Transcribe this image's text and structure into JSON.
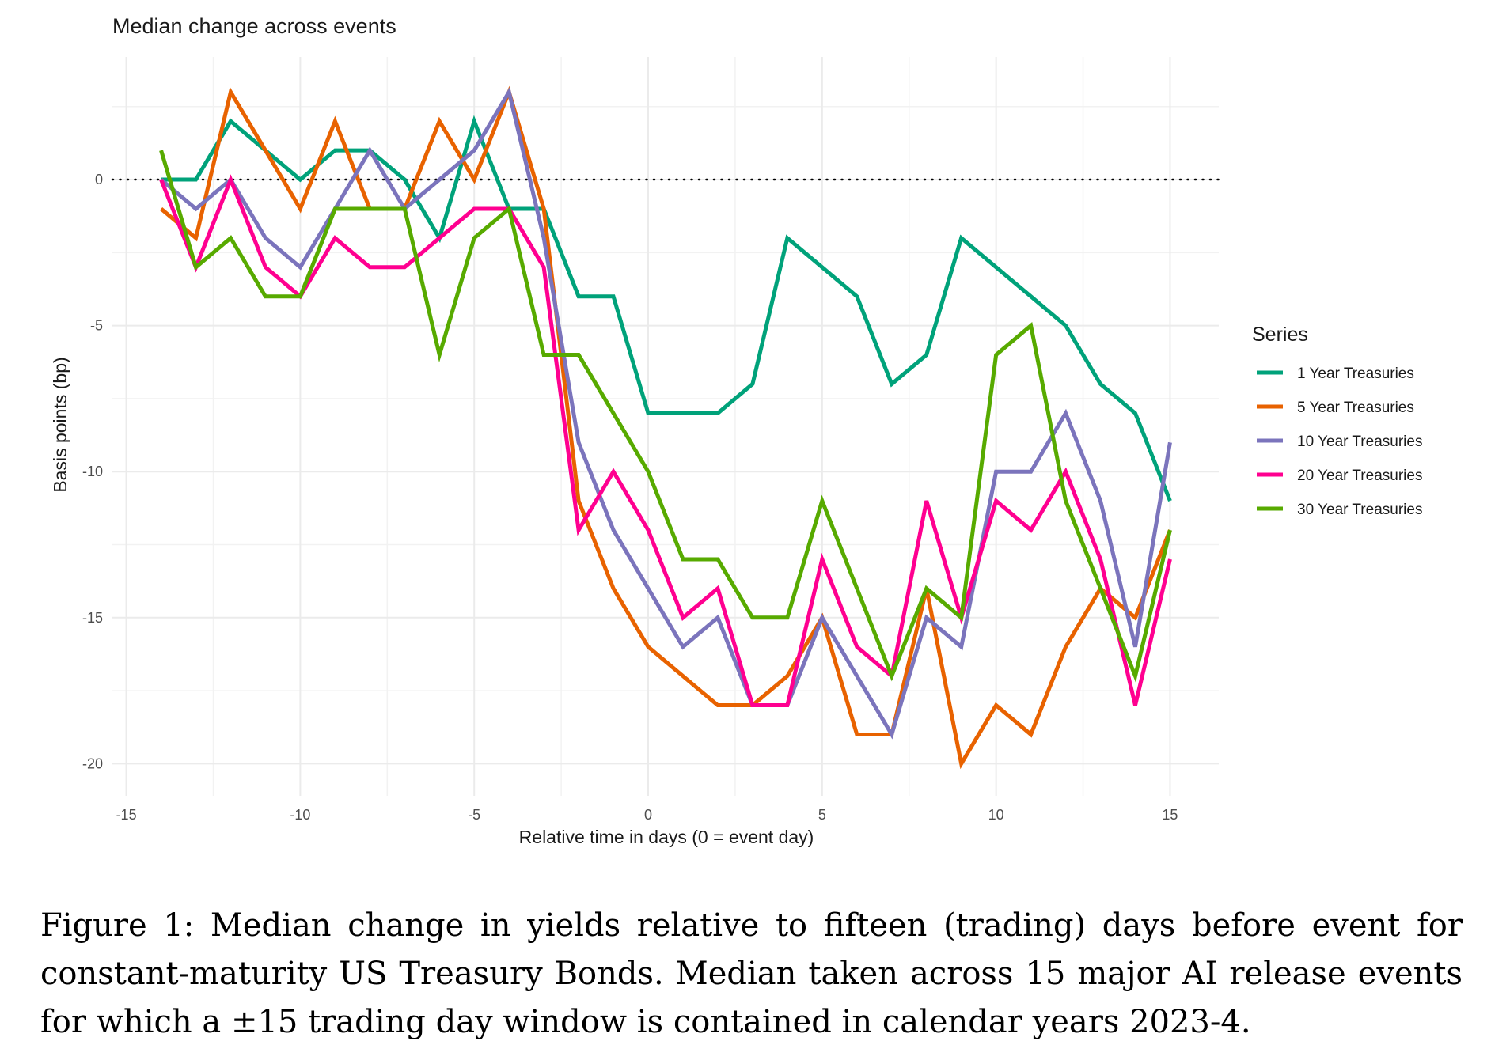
{
  "chart_data": {
    "type": "line",
    "title": "Median change across events",
    "xlabel": "Relative time in days (0 = event day)",
    "ylabel": "Basis points (bp)",
    "xlim": [
      -15.4,
      16.4
    ],
    "ylim": [
      -21.1,
      4.2
    ],
    "xticks": [
      -15,
      -10,
      -5,
      0,
      5,
      10,
      15
    ],
    "yticks": [
      0,
      -5,
      -10,
      -15,
      -20
    ],
    "grid": true,
    "reference_line": {
      "y": 0,
      "style": "dotted"
    },
    "legend": {
      "title": "Series",
      "placement": "right"
    },
    "x": [
      -14,
      -13,
      -12,
      -11,
      -10,
      -9,
      -8,
      -7,
      -6,
      -5,
      -4,
      -3,
      -2,
      -1,
      0,
      1,
      2,
      3,
      4,
      5,
      6,
      7,
      8,
      9,
      10,
      11,
      12,
      13,
      14,
      15
    ],
    "series": [
      {
        "name": "1 Year Treasuries",
        "color": "#00A27A",
        "values": [
          0,
          0,
          2,
          1,
          0,
          1,
          1,
          0,
          -2,
          2,
          -1,
          -1,
          -4,
          -4,
          -8,
          -8,
          -8,
          -7,
          -2,
          -3,
          -4,
          -7,
          -6,
          -2,
          -3,
          -4,
          -5,
          -7,
          -8,
          -11
        ]
      },
      {
        "name": "5 Year Treasuries",
        "color": "#E86200",
        "values": [
          -1,
          -2,
          3,
          1,
          -1,
          2,
          -1,
          -1,
          2,
          0,
          3,
          -1,
          -11,
          -14,
          -16,
          -17,
          -18,
          -18,
          -17,
          -15,
          -19,
          -19,
          -14,
          -20,
          -18,
          -19,
          -16,
          -14,
          -15,
          -12
        ]
      },
      {
        "name": "10 Year Treasuries",
        "color": "#7B74BC",
        "values": [
          0,
          -1,
          0,
          -2,
          -3,
          -1,
          1,
          -1,
          0,
          1,
          3,
          -2,
          -9,
          -12,
          -14,
          -16,
          -15,
          -18,
          -18,
          -15,
          -17,
          -19,
          -15,
          -16,
          -10,
          -10,
          -8,
          -11,
          -16,
          -9
        ]
      },
      {
        "name": "20 Year Treasuries",
        "color": "#FF0090",
        "values": [
          0,
          -3,
          0,
          -3,
          -4,
          -2,
          -3,
          -3,
          -2,
          -1,
          -1,
          -3,
          -12,
          -10,
          -12,
          -15,
          -14,
          -18,
          -18,
          -13,
          -16,
          -17,
          -11,
          -15,
          -11,
          -12,
          -10,
          -13,
          -18,
          -13
        ]
      },
      {
        "name": "30 Year Treasuries",
        "color": "#57AA00",
        "values": [
          1,
          -3,
          -2,
          -4,
          -4,
          -1,
          -1,
          -1,
          -6,
          -2,
          -1,
          -6,
          -6,
          -8,
          -10,
          -13,
          -13,
          -15,
          -15,
          -11,
          -14,
          -17,
          -14,
          -15,
          -6,
          -5,
          -11,
          -14,
          -17,
          -12
        ]
      }
    ]
  },
  "caption": {
    "lines": [
      "Figure 1:  Median change in yields relative to fifteen (trading) days before event for",
      "constant-maturity US Treasury Bonds. Median taken across 15 major AI release events",
      "for which a ±15 trading day window is contained in calendar years 2023-4."
    ]
  }
}
